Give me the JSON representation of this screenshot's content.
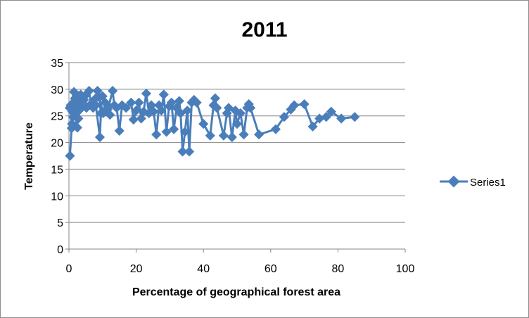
{
  "chart_data": {
    "type": "line",
    "title": "2011",
    "xlabel": "Percentage of geographical forest area",
    "ylabel": "Temperature",
    "xlim": [
      0,
      100
    ],
    "ylim": [
      0,
      35
    ],
    "xticks": [
      "0",
      "20",
      "40",
      "60",
      "80",
      "100"
    ],
    "yticks": [
      "0",
      "5",
      "10",
      "15",
      "20",
      "25",
      "30",
      "35"
    ],
    "grid": true,
    "legend_position": "right",
    "series_color": "#4a7ebb",
    "series": [
      {
        "name": "Series1",
        "x": [
          0.3,
          0.8,
          0.5,
          1.0,
          0.2,
          1.5,
          0.9,
          1.8,
          1.2,
          2.0,
          2.5,
          1.6,
          2.2,
          3.0,
          2.8,
          3.5,
          4.0,
          3.3,
          4.5,
          5.2,
          4.8,
          6.0,
          6.5,
          7.2,
          7.8,
          8.5,
          8.0,
          9.2,
          9.5,
          9.0,
          10.2,
          10.8,
          10.0,
          11.5,
          12.2,
          11.8,
          13.0,
          13.5,
          14.2,
          15.0,
          15.8,
          17.0,
          18.5,
          19.2,
          20.0,
          20.8,
          21.5,
          22.2,
          23.0,
          23.8,
          24.5,
          25.2,
          26.0,
          26.8,
          27.5,
          28.2,
          29.0,
          29.8,
          30.5,
          31.2,
          32.0,
          32.8,
          33.2,
          33.8,
          34.5,
          35.2,
          35.8,
          36.5,
          37.2,
          38.0,
          40.0,
          42.0,
          43.0,
          43.5,
          44.0,
          46.0,
          47.0,
          47.5,
          48.5,
          49.5,
          50.0,
          51.0,
          52.0,
          53.0,
          53.5,
          54.0,
          56.5,
          61.5,
          64.0,
          66.0,
          67.0,
          70.0,
          72.5,
          74.5,
          76.5,
          78.0,
          81.0,
          85.0
        ],
        "values": [
          17.5,
          22.7,
          27.0,
          25.8,
          26.5,
          29.5,
          23.5,
          28.3,
          24.8,
          27.5,
          22.8,
          26.0,
          27.0,
          28.5,
          24.5,
          29.0,
          27.3,
          26.2,
          28.0,
          26.5,
          28.8,
          29.7,
          27.2,
          26.5,
          28.2,
          29.7,
          27.0,
          21.0,
          25.5,
          28.5,
          25.5,
          27.5,
          28.7,
          26.2,
          25.2,
          26.8,
          29.7,
          27.0,
          26.5,
          22.2,
          27.0,
          26.5,
          27.5,
          24.3,
          26.0,
          27.5,
          24.5,
          25.8,
          29.2,
          25.5,
          27.0,
          25.8,
          21.5,
          27.0,
          26.0,
          29.0,
          22.0,
          26.8,
          27.5,
          22.5,
          26.5,
          27.8,
          25.5,
          18.3,
          22.0,
          26.0,
          18.3,
          27.5,
          28.0,
          27.5,
          23.5,
          21.3,
          27.0,
          28.3,
          26.5,
          21.3,
          25.5,
          26.5,
          21.0,
          26.0,
          23.5,
          25.5,
          21.5,
          26.5,
          27.2,
          26.5,
          21.5,
          22.5,
          24.8,
          26.2,
          27.0,
          27.2,
          23.0,
          24.5,
          24.8,
          25.8,
          24.5,
          24.8
        ]
      }
    ]
  }
}
